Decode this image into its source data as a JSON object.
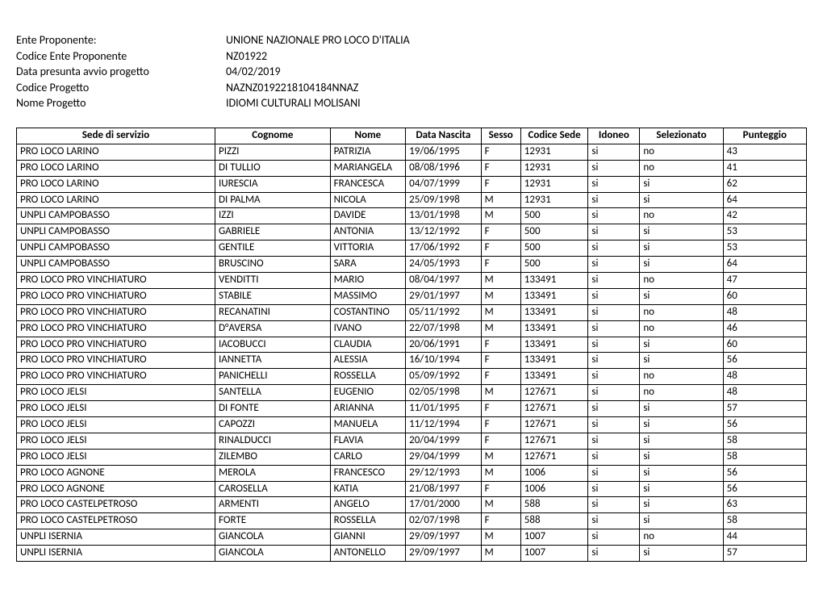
{
  "info": {
    "rows": [
      {
        "label": "Ente Proponente:",
        "value": "UNIONE NAZIONALE PRO LOCO D'ITALIA"
      },
      {
        "label": "Codice    Ente Proponente",
        "value": "NZ01922"
      },
      {
        "label": "Data presunta avvio progetto",
        "value": "04/02/2019"
      },
      {
        "label": "Codice    Progetto",
        "value": "NAZNZ0192218104184NNAZ"
      },
      {
        "label": "Nome Progetto",
        "value": "IDIOMI CULTURALI MOLISANI"
      }
    ]
  },
  "table": {
    "columns": [
      "Sede di servizio",
      "Cognome",
      "Nome",
      "Data   Nascita",
      "Sesso",
      "Codice Sede",
      "Idoneo",
      "Selezionato",
      "Punteggio"
    ],
    "rows": [
      [
        "PRO LOCO LARINO",
        "PIZZI",
        "PATRIZIA",
        "19/06/1995",
        "F",
        "12931",
        "si",
        "no",
        "43"
      ],
      [
        "PRO LOCO LARINO",
        "DI TULLIO",
        "MARIANGELA",
        "08/08/1996",
        "F",
        "12931",
        "si",
        "no",
        "41"
      ],
      [
        "PRO LOCO LARINO",
        "IURESCIA",
        "FRANCESCA",
        "04/07/1999",
        "F",
        "12931",
        "si",
        "si",
        "62"
      ],
      [
        "PRO LOCO LARINO",
        "DI PALMA",
        "NICOLA",
        "25/09/1998",
        "M",
        "12931",
        "si",
        "si",
        "64"
      ],
      [
        "UNPLI CAMPOBASSO",
        "IZZI",
        "DAVIDE",
        "13/01/1998",
        "M",
        "500",
        "si",
        "no",
        "42"
      ],
      [
        "UNPLI CAMPOBASSO",
        "GABRIELE",
        "ANTONIA",
        "13/12/1992",
        "F",
        "500",
        "si",
        "si",
        "53"
      ],
      [
        "UNPLI CAMPOBASSO",
        "GENTILE",
        "VITTORIA",
        "17/06/1992",
        "F",
        "500",
        "si",
        "si",
        "53"
      ],
      [
        "UNPLI CAMPOBASSO",
        "BRUSCINO",
        "SARA",
        "24/05/1993",
        "F",
        "500",
        "si",
        "si",
        "64"
      ],
      [
        "PRO LOCO PRO VINCHIATURO",
        "VENDITTI",
        "MARIO",
        "08/04/1997",
        "M",
        "133491",
        "si",
        "no",
        "47"
      ],
      [
        "PRO LOCO PRO VINCHIATURO",
        "STABILE",
        "MASSIMO",
        "29/01/1997",
        "M",
        "133491",
        "si",
        "si",
        "60"
      ],
      [
        "PRO LOCO PRO VINCHIATURO",
        "RECANATINI",
        "COSTANTINO",
        "05/11/1992",
        "M",
        "133491",
        "si",
        "no",
        "48"
      ],
      [
        "PRO LOCO PRO VINCHIATURO",
        "D°AVERSA",
        "IVANO",
        "22/07/1998",
        "M",
        "133491",
        "si",
        "no",
        "46"
      ],
      [
        "PRO LOCO PRO VINCHIATURO",
        "IACOBUCCI",
        "CLAUDIA",
        "20/06/1991",
        "F",
        "133491",
        "si",
        "si",
        "60"
      ],
      [
        "PRO LOCO PRO VINCHIATURO",
        "IANNETTA",
        "ALESSIA",
        "16/10/1994",
        "F",
        "133491",
        "si",
        "si",
        "56"
      ],
      [
        "PRO LOCO PRO VINCHIATURO",
        "PANICHELLI",
        "ROSSELLA",
        "05/09/1992",
        "F",
        "133491",
        "si",
        "no",
        "48"
      ],
      [
        "PRO LOCO JELSI",
        "SANTELLA",
        "EUGENIO",
        "02/05/1998",
        "M",
        "127671",
        "si",
        "no",
        "48"
      ],
      [
        "PRO LOCO JELSI",
        "DI FONTE",
        "ARIANNA",
        "11/01/1995",
        "F",
        "127671",
        "si",
        "si",
        "57"
      ],
      [
        "PRO LOCO JELSI",
        "CAPOZZI",
        "MANUELA",
        "11/12/1994",
        "F",
        "127671",
        "si",
        "si",
        "56"
      ],
      [
        "PRO LOCO JELSI",
        "RINALDUCCI",
        "FLAVIA",
        "20/04/1999",
        "F",
        "127671",
        "si",
        "si",
        "58"
      ],
      [
        "PRO LOCO JELSI",
        "ZILEMBO",
        "CARLO",
        "29/04/1999",
        "M",
        "127671",
        "si",
        "si",
        "58"
      ],
      [
        "PRO LOCO AGNONE",
        "MEROLA",
        "FRANCESCO",
        "29/12/1993",
        "M",
        "1006",
        "si",
        "si",
        "56"
      ],
      [
        "PRO LOCO AGNONE",
        "CAROSELLA",
        "KATIA",
        "21/08/1997",
        "F",
        "1006",
        "si",
        "si",
        "56"
      ],
      [
        "PRO LOCO CASTELPETROSO",
        "ARMENTI",
        "ANGELO",
        "17/01/2000",
        "M",
        "588",
        "si",
        "si",
        "63"
      ],
      [
        "PRO LOCO CASTELPETROSO",
        "FORTE",
        "ROSSELLA",
        "02/07/1998",
        "F",
        "588",
        "si",
        "si",
        "58"
      ],
      [
        "UNPLI ISERNIA",
        "GIANCOLA",
        "GIANNI",
        "29/09/1997",
        "M",
        "1007",
        "si",
        "no",
        "44"
      ],
      [
        "UNPLI ISERNIA",
        "GIANCOLA",
        "ANTONELLO",
        "29/09/1997",
        "M",
        "1007",
        "si",
        "si",
        "57"
      ]
    ]
  }
}
